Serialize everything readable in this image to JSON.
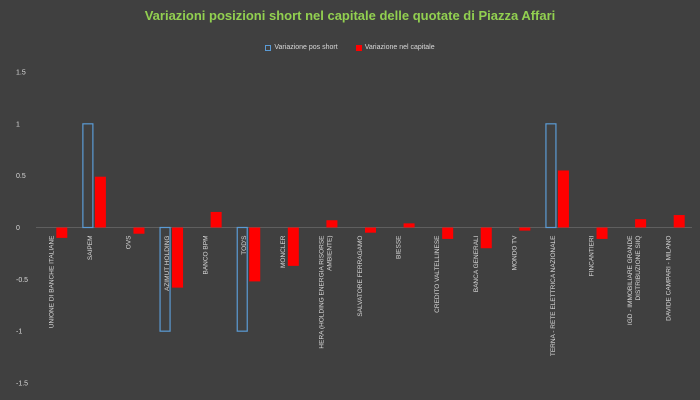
{
  "chart_data": {
    "type": "bar",
    "title": "Variazioni posizioni short nel capitale delle quotate di Piazza Affari",
    "categories": [
      [
        "UNIONE DI BANCHE ITALIANE"
      ],
      [
        "SAIPEM"
      ],
      [
        "OVS"
      ],
      [
        "AZIMUT HOLDING"
      ],
      [
        "BANCO BPM"
      ],
      [
        "TOD'S"
      ],
      [
        "MONCLER"
      ],
      [
        "HERA  (HOLDING ENERGIA RISORSE",
        "AMBIENTE)"
      ],
      [
        "SALVATORE FERRAGAMO"
      ],
      [
        "BIESSE"
      ],
      [
        "CREDITO VALTELLINESE"
      ],
      [
        "BANCA GENERALI"
      ],
      [
        "MONDO TV"
      ],
      [
        "TERNA - RETE ELETTRICA NAZIONALE"
      ],
      [
        "FINCANTIERI"
      ],
      [
        "IGD - IMMOBILIARE GRANDE",
        "DISTRIBUZIONE SIIQ"
      ],
      [
        "DAVIDE CAMPARI - MILANO"
      ]
    ],
    "series": [
      {
        "name": "Variazione pos short",
        "color": "#5b9bd5",
        "style": "outline",
        "values": [
          0,
          1,
          0,
          -1,
          0,
          -1,
          0,
          0,
          0,
          0,
          0,
          0,
          0,
          1,
          0,
          0,
          0
        ]
      },
      {
        "name": "Variazione nel capitale",
        "color": "#ff0000",
        "style": "filled",
        "values": [
          -0.1,
          0.49,
          -0.06,
          -0.58,
          0.15,
          -0.52,
          -0.37,
          0.07,
          -0.05,
          0.04,
          -0.11,
          -0.2,
          -0.03,
          0.55,
          -0.11,
          0.08,
          0.12
        ]
      }
    ],
    "ylim": [
      -1.5,
      1.5
    ],
    "yticks": [
      "1.5",
      "1",
      "0.5",
      "0",
      "-0.5",
      "-1",
      "-1.5"
    ],
    "ytick_values": [
      1.5,
      1,
      0.5,
      0,
      -0.5,
      -1,
      -1.5
    ],
    "legend_position": "top"
  }
}
